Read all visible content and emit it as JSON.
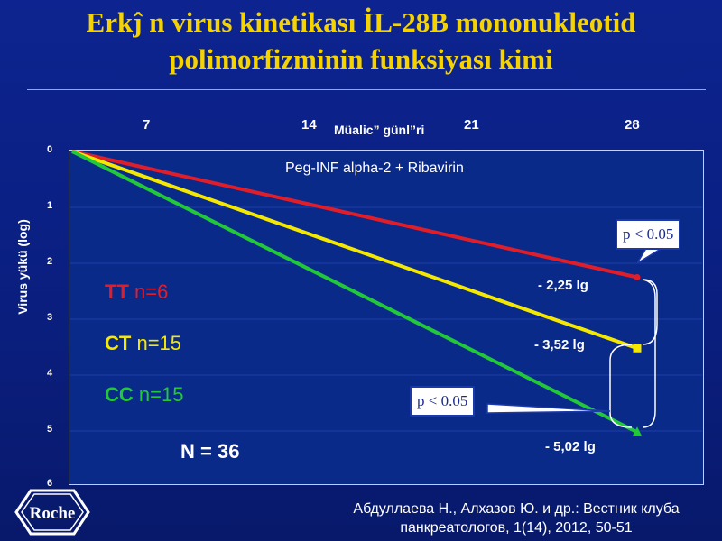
{
  "slide": {
    "title": "Erkĵ n virus kinetikası İL-28B mononukleotid polimorfizminin funksiyası kimi",
    "therapy_label": "Peg-INF alpha-2 + Ribavirin",
    "total_label": "N = 36",
    "citation_line1": "Абдуллаева Н., Алхазов Ю. и др.: Вестник клуба",
    "citation_line2": "панкреатологов, 1(14), 2012, 50-51",
    "logo_text": "Roche",
    "callouts": [
      "p < 0.05",
      "p < 0.05"
    ],
    "groups": [
      {
        "name": "TT",
        "n_label": "n=6",
        "color": "#e01e2a"
      },
      {
        "name": "CT",
        "n_label": "n=15",
        "color": "#f5e800"
      },
      {
        "name": "CC",
        "n_label": "n=15",
        "color": "#22c83a"
      }
    ]
  },
  "chart_data": {
    "type": "line",
    "xlabel": "Müalic” günl”ri",
    "ylabel": "Virus yükü (log)",
    "x_ticks": [
      "7",
      "14",
      "21",
      "28"
    ],
    "y_ticks": [
      "0",
      "1",
      "2",
      "3",
      "4",
      "5",
      "6"
    ],
    "xlim": [
      0,
      28
    ],
    "ylim": [
      0,
      6
    ],
    "y_inverted": true,
    "series": [
      {
        "name": "TT",
        "x": [
          0,
          28
        ],
        "values": [
          0,
          2.25
        ],
        "color": "#e01e2a",
        "end_label": "- 2,25 lg"
      },
      {
        "name": "CT",
        "x": [
          0,
          28
        ],
        "values": [
          0,
          3.52
        ],
        "color": "#f5e800",
        "end_label": "- 3,52 lg"
      },
      {
        "name": "CC",
        "x": [
          0,
          28
        ],
        "values": [
          0,
          5.02
        ],
        "color": "#22c83a",
        "end_label": "- 5,02 lg"
      }
    ]
  }
}
